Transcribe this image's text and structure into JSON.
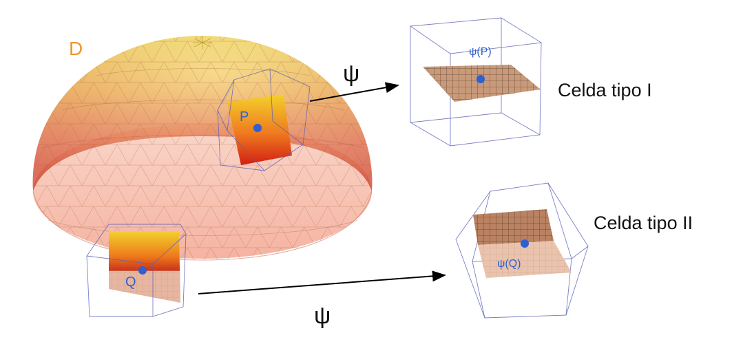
{
  "diagram": {
    "domain_label": "D",
    "map_symbol": "ψ",
    "point_p": "P",
    "point_q": "Q",
    "image_p": "ψ(P)",
    "image_q": "ψ(Q)",
    "cell_type_1": "Celda tipo I",
    "cell_type_2": "Celda tipo II"
  },
  "colors": {
    "domain_label": "#f0962a",
    "point_blue": "#2f5fd0",
    "box_outline": "#5a5fb8",
    "mesh_edge": "#b07060",
    "text": "#111111"
  }
}
